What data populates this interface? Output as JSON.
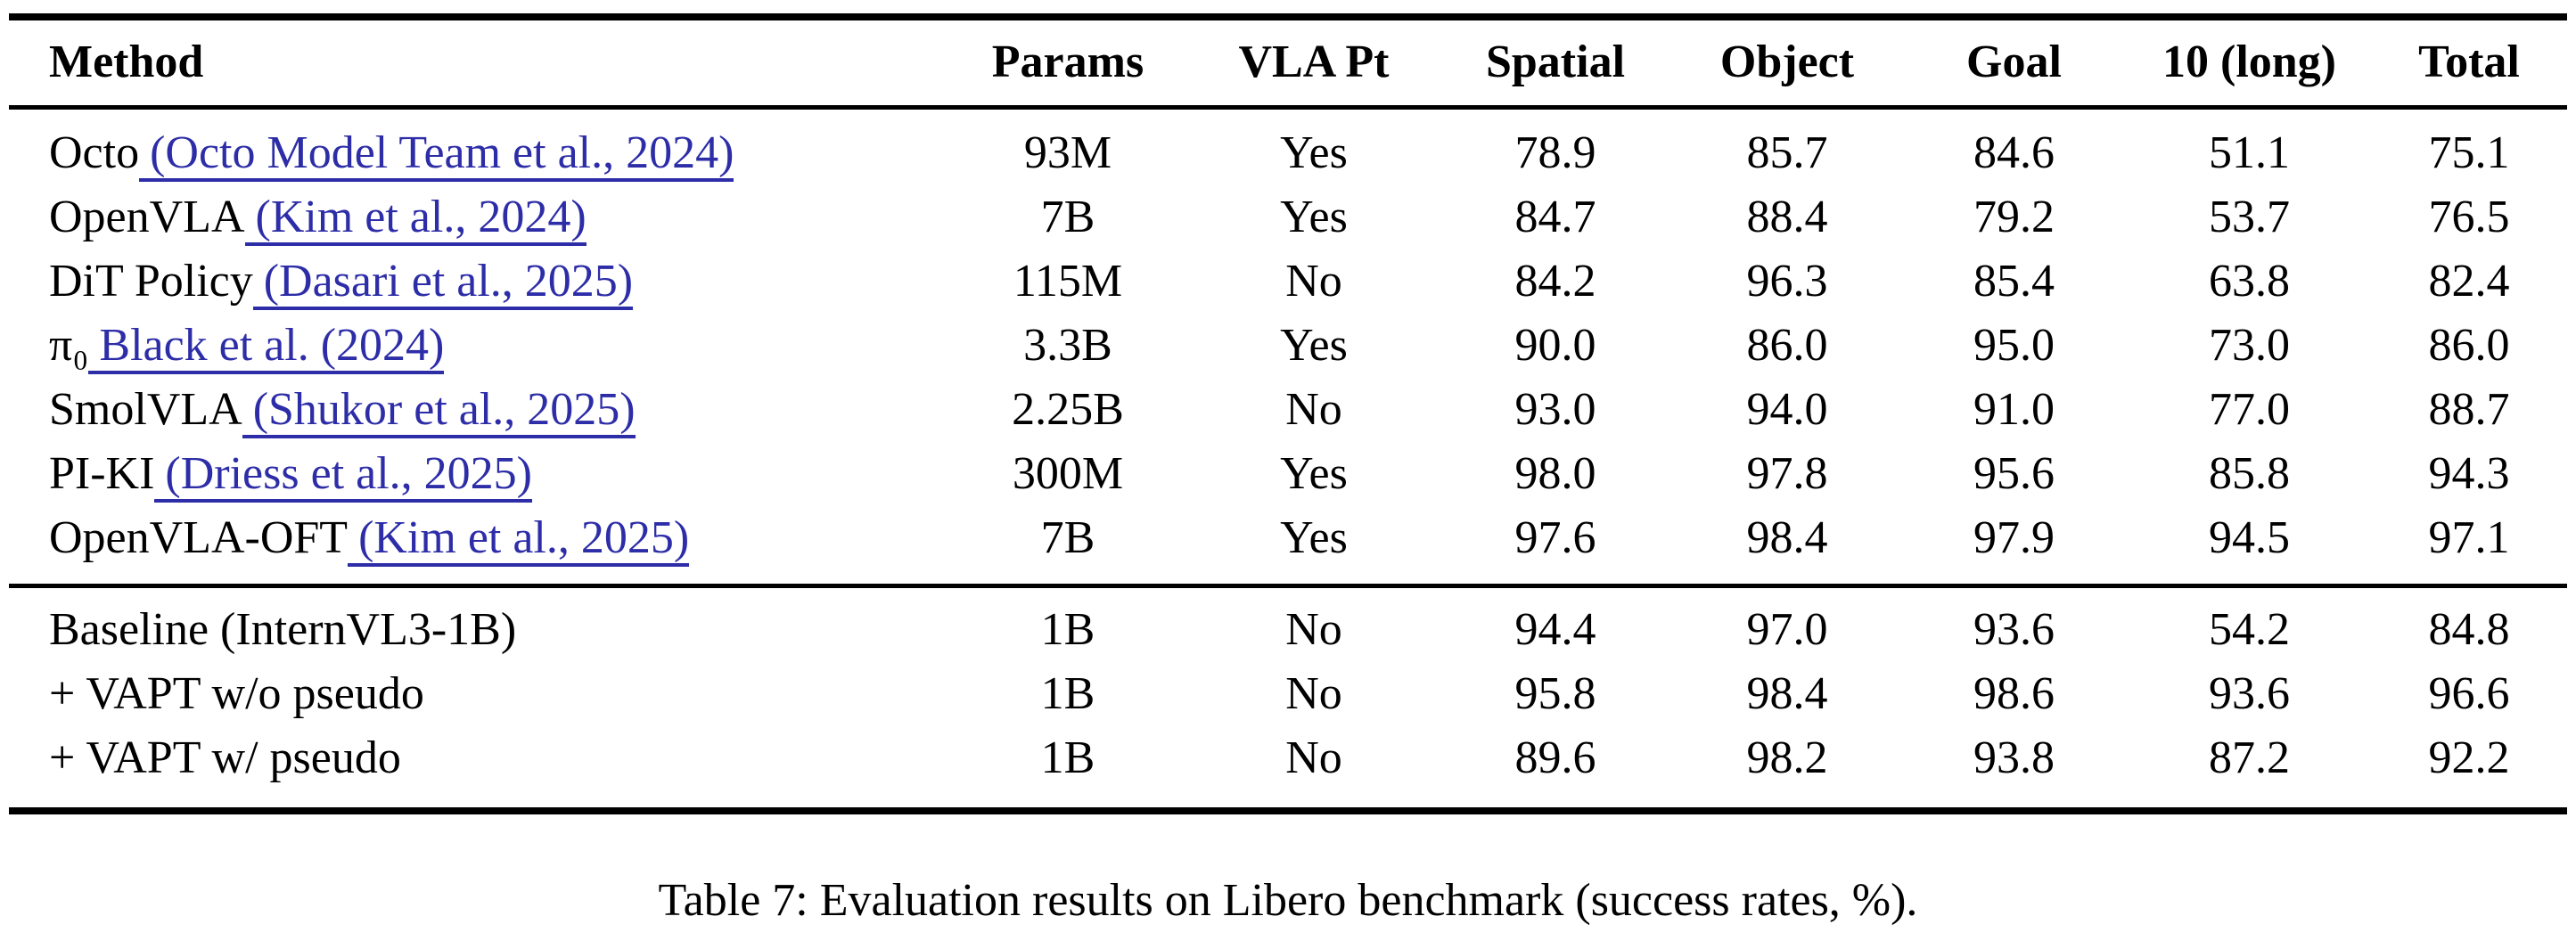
{
  "caption": "Table 7: Evaluation results on Libero benchmark (success rates, %).",
  "colors": {
    "text": "#000000",
    "link_blue": "#2d2da8",
    "rule": "#000000",
    "background": "#ffffff"
  },
  "table": {
    "columns": [
      "Method",
      "Params",
      "VLA Pt",
      "Spatial",
      "Object",
      "Goal",
      "10 (long)",
      "Total"
    ],
    "rows1": [
      {
        "method": "Octo",
        "cite": "(Octo Model Team et al., 2024)",
        "params": "93M",
        "vla": "Yes",
        "spatial": "78.9",
        "object": "85.7",
        "goal": "84.6",
        "long": "51.1",
        "total": "75.1"
      },
      {
        "method": "OpenVLA",
        "cite": "(Kim et al., 2024)",
        "params": "7B",
        "vla": "Yes",
        "spatial": "84.7",
        "object": "88.4",
        "goal": "79.2",
        "long": "53.7",
        "total": "76.5"
      },
      {
        "method": "DiT Policy",
        "cite": "(Dasari et al., 2025)",
        "params": "115M",
        "vla": "No",
        "spatial": "84.2",
        "object": "96.3",
        "goal": "85.4",
        "long": "63.8",
        "total": "82.4"
      },
      {
        "method": "π₀",
        "cite": "Black et al. (2024)",
        "params": "3.3B",
        "vla": "Yes",
        "spatial": "90.0",
        "object": "86.0",
        "goal": "95.0",
        "long": "73.0",
        "total": "86.0"
      },
      {
        "method": "SmolVLA",
        "cite": "(Shukor et al., 2025)",
        "params": "2.25B",
        "vla": "No",
        "spatial": "93.0",
        "object": "94.0",
        "goal": "91.0",
        "long": "77.0",
        "total": "88.7"
      },
      {
        "method": "PI-KI",
        "cite": "(Driess et al., 2025)",
        "params": "300M",
        "vla": "Yes",
        "spatial": "98.0",
        "object": "97.8",
        "goal": "95.6",
        "long": "85.8",
        "total": "94.3"
      },
      {
        "method": "OpenVLA-OFT",
        "cite": "(Kim et al., 2025)",
        "params": "7B",
        "vla": "Yes",
        "spatial": "97.6",
        "object": "98.4",
        "goal": "97.9",
        "long": "94.5",
        "total": "97.1"
      }
    ],
    "rows2": [
      {
        "method": "Baseline (InternVL3-1B)",
        "cite": "",
        "params": "1B",
        "vla": "No",
        "spatial": "94.4",
        "object": "97.0",
        "goal": "93.6",
        "long": "54.2",
        "total": "84.8"
      },
      {
        "method": "+ VAPT w/o pseudo",
        "cite": "",
        "params": "1B",
        "vla": "No",
        "spatial": "95.8",
        "object": "98.4",
        "goal": "98.6",
        "long": "93.6",
        "total": "96.6"
      },
      {
        "method": "+ VAPT w/ pseudo",
        "cite": "",
        "params": "1B",
        "vla": "No",
        "spatial": "89.6",
        "object": "98.2",
        "goal": "93.8",
        "long": "87.2",
        "total": "92.2"
      }
    ]
  },
  "chart_data": {
    "type": "table",
    "title": "Table 7: Evaluation results on Libero benchmark (success rates, %).",
    "columns": [
      "Method",
      "Params",
      "VLA Pt",
      "Spatial",
      "Object",
      "Goal",
      "10 (long)",
      "Total"
    ],
    "rows": [
      [
        "Octo (Octo Model Team et al., 2024)",
        "93M",
        "Yes",
        78.9,
        85.7,
        84.6,
        51.1,
        75.1
      ],
      [
        "OpenVLA (Kim et al., 2024)",
        "7B",
        "Yes",
        84.7,
        88.4,
        79.2,
        53.7,
        76.5
      ],
      [
        "DiT Policy (Dasari et al., 2025)",
        "115M",
        "No",
        84.2,
        96.3,
        85.4,
        63.8,
        82.4
      ],
      [
        "π₀ Black et al. (2024)",
        "3.3B",
        "Yes",
        90.0,
        86.0,
        95.0,
        73.0,
        86.0
      ],
      [
        "SmolVLA (Shukor et al., 2025)",
        "2.25B",
        "No",
        93.0,
        94.0,
        91.0,
        77.0,
        88.7
      ],
      [
        "PI-KI (Driess et al., 2025)",
        "300M",
        "Yes",
        98.0,
        97.8,
        95.6,
        85.8,
        94.3
      ],
      [
        "OpenVLA-OFT (Kim et al., 2025)",
        "7B",
        "Yes",
        97.6,
        98.4,
        97.9,
        94.5,
        97.1
      ],
      [
        "Baseline (InternVL3-1B)",
        "1B",
        "No",
        94.4,
        97.0,
        93.6,
        54.2,
        84.8
      ],
      [
        "+ VAPT w/o pseudo",
        "1B",
        "No",
        95.8,
        98.4,
        98.6,
        93.6,
        96.6
      ],
      [
        "+ VAPT w/ pseudo",
        "1B",
        "No",
        89.6,
        98.2,
        93.8,
        87.2,
        92.2
      ]
    ]
  }
}
